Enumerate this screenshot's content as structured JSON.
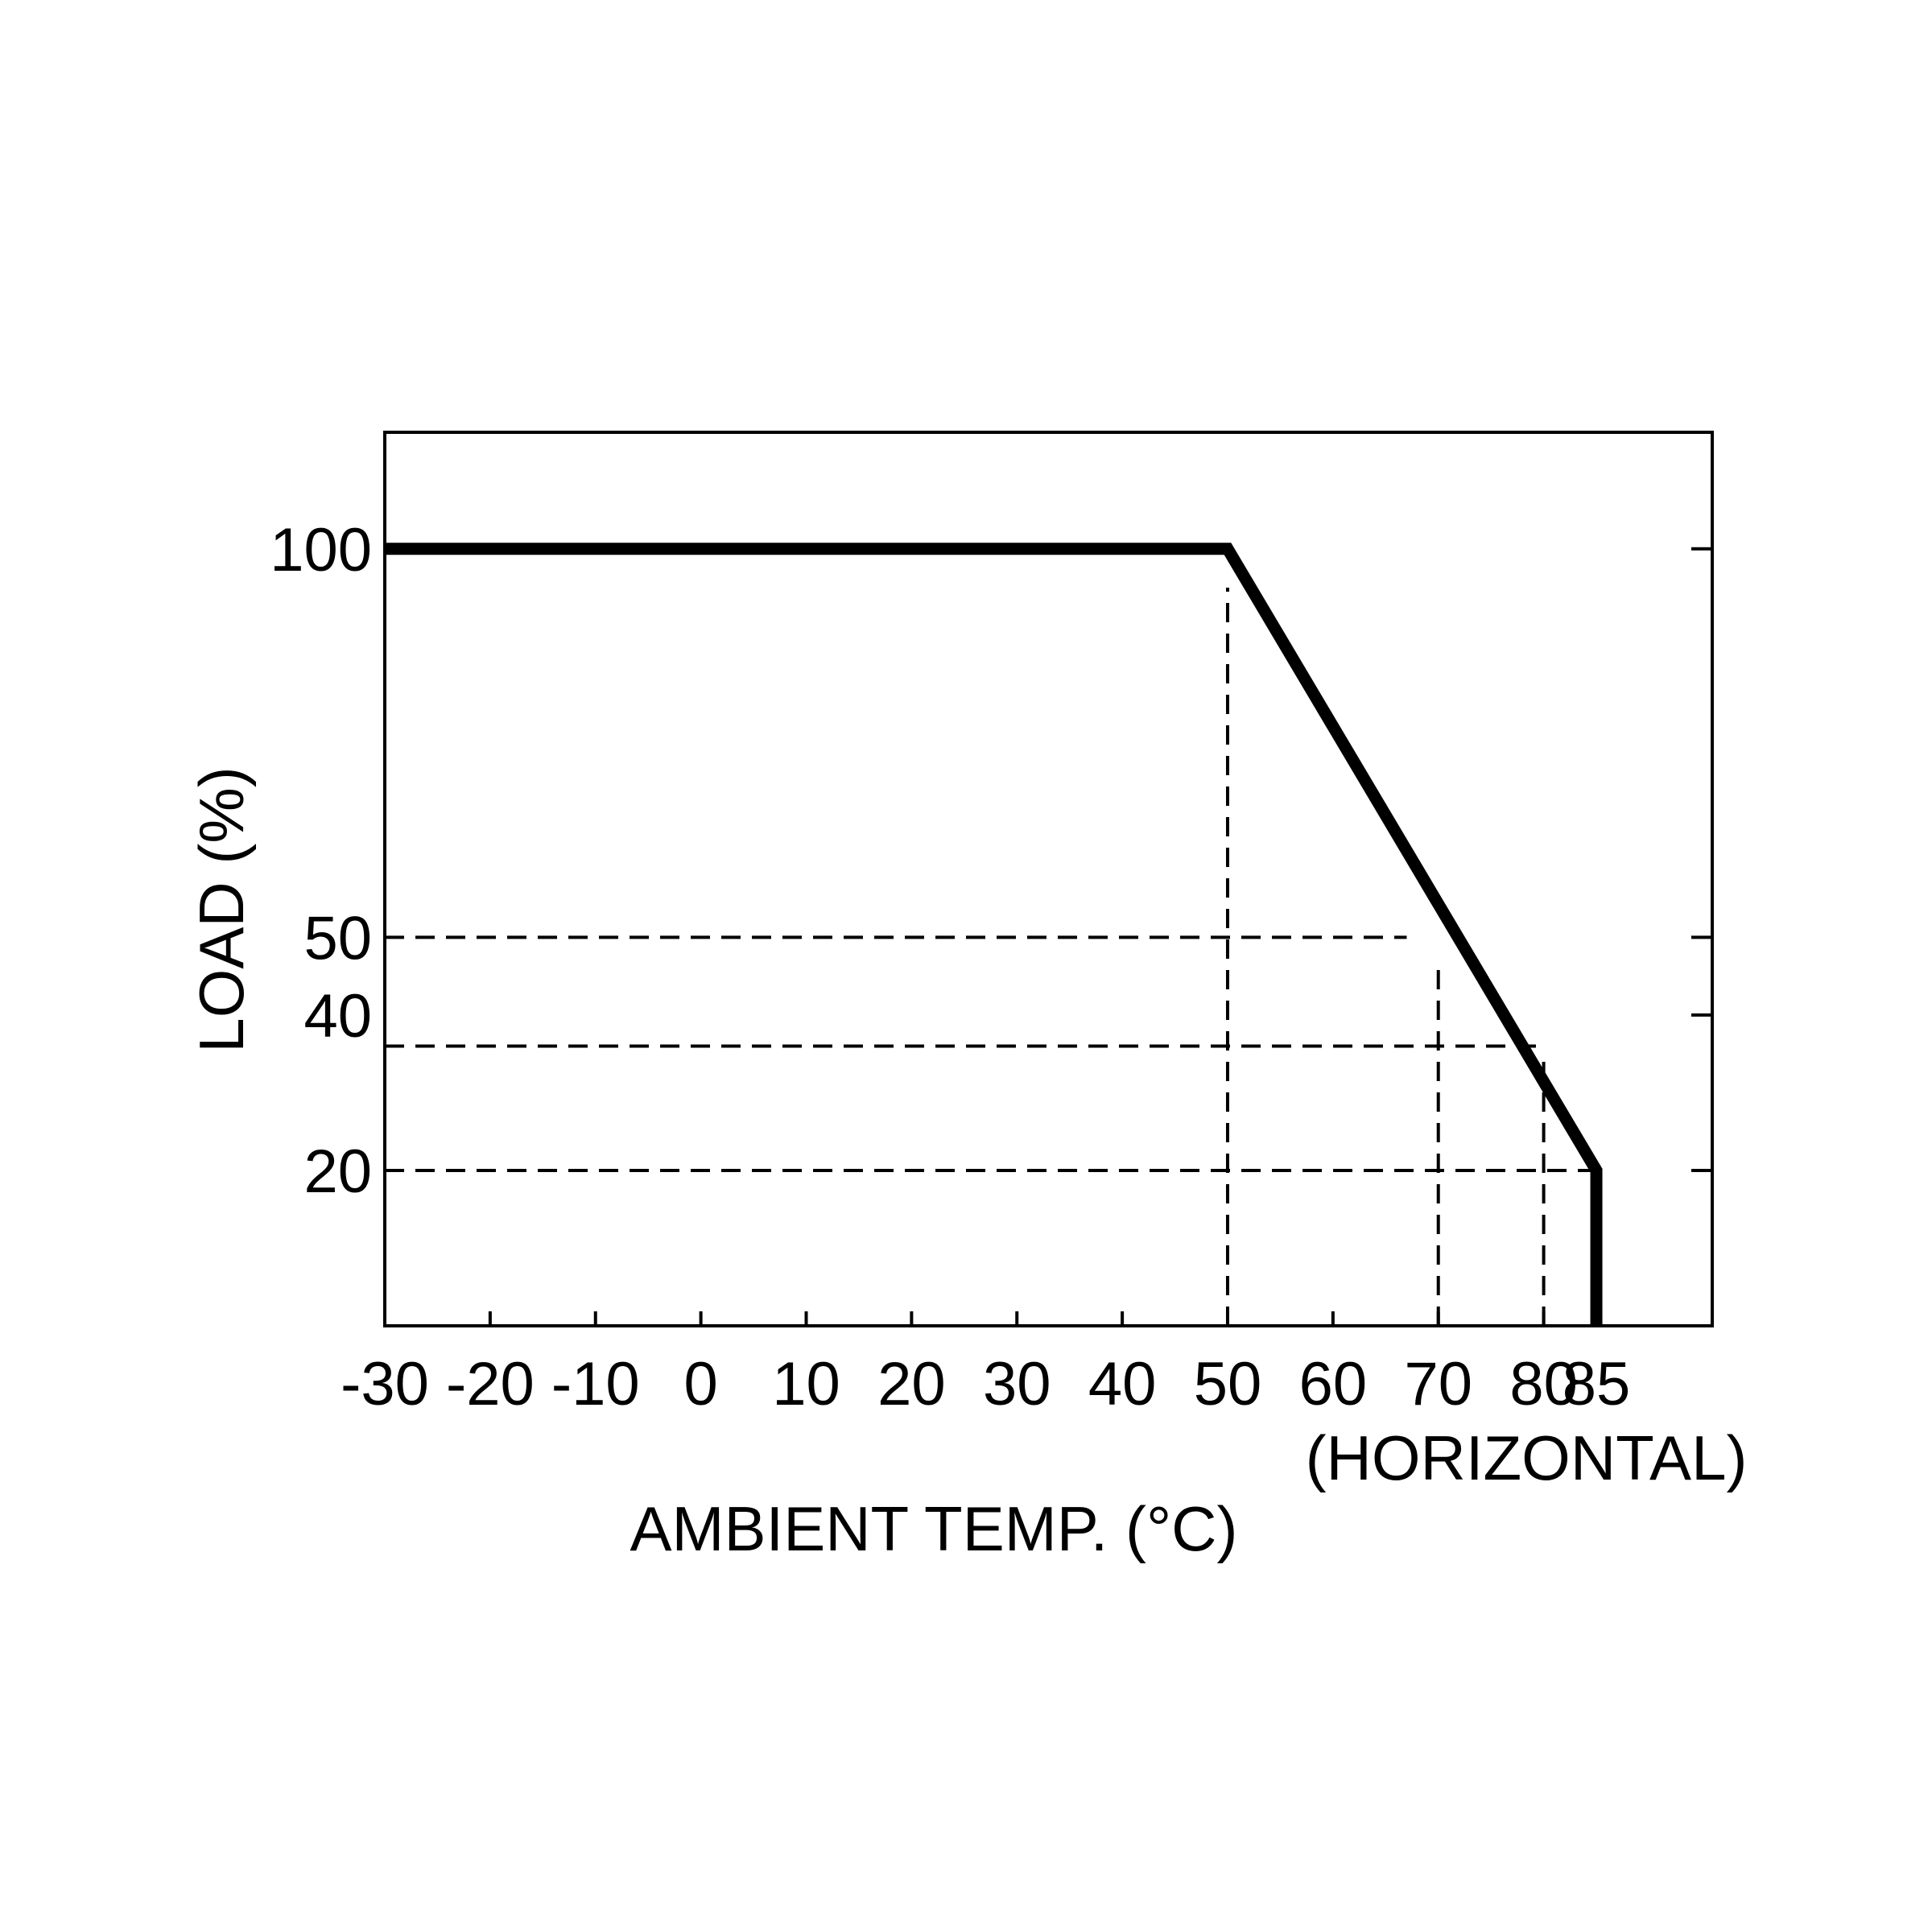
{
  "chart_data": {
    "type": "line",
    "title": "",
    "xlabel": "AMBIENT TEMP. (°C)",
    "ylabel": "LOAD (%)",
    "annotation": "(HORIZONTAL)",
    "x_ticks": [
      "-30",
      "-20",
      "-10",
      "0",
      "10",
      "20",
      "30",
      "40",
      "50",
      "60",
      "70",
      "80",
      "85"
    ],
    "x_tick_values": [
      -30,
      -20,
      -10,
      0,
      10,
      20,
      30,
      40,
      50,
      60,
      70,
      80,
      85
    ],
    "y_ticks": [
      "100",
      "50",
      "40",
      "20"
    ],
    "y_tick_values": [
      100,
      50,
      40,
      20
    ],
    "xlim": [
      -30,
      96
    ],
    "ylim": [
      0,
      115
    ],
    "grid": false,
    "series": [
      {
        "x": [
          -30,
          50,
          85,
          85
        ],
        "y": [
          100,
          100,
          20,
          0
        ]
      }
    ],
    "reference_lines": [
      {
        "orientation": "vertical",
        "x": 50,
        "y_from": 0,
        "y_to": 95
      },
      {
        "orientation": "vertical",
        "x": 70,
        "y_from": 0,
        "y_to": 47
      },
      {
        "orientation": "vertical",
        "x": 80,
        "y_from": 0,
        "y_to": 34
      },
      {
        "orientation": "horizontal",
        "y": 50,
        "x_from": -30,
        "x_to": 67
      },
      {
        "orientation": "horizontal",
        "y": 36,
        "x_from": -30,
        "x_to": 80
      },
      {
        "orientation": "horizontal",
        "y": 20,
        "x_from": -30,
        "x_to": 85
      }
    ]
  }
}
